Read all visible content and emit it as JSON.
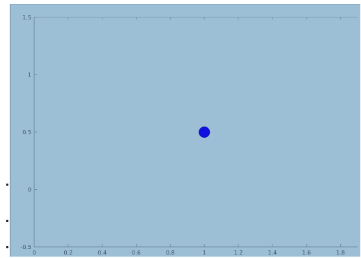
{
  "chart_data": {
    "type": "scatter",
    "title": "",
    "xlabel": "",
    "ylabel": "",
    "xlim": [
      0,
      1.9
    ],
    "ylim": [
      -0.5,
      1.5
    ],
    "x_ticks": [
      0,
      0.2,
      0.4,
      0.6,
      0.8,
      1,
      1.2,
      1.4,
      1.6,
      1.8
    ],
    "x_tick_labels": [
      "0",
      "0.2",
      "0.4",
      "0.6",
      "0.8",
      "1",
      "1.2",
      "1.4",
      "1.6",
      "1.8"
    ],
    "y_ticks": [
      -0.5,
      0,
      0.5,
      1,
      1.5
    ],
    "y_tick_labels": [
      "-0.5",
      "0",
      "0.5",
      "1",
      "1.5"
    ],
    "grid": false,
    "series": [
      {
        "x": [
          1.0
        ],
        "y": [
          0.5
        ],
        "color": "#1010e0"
      }
    ],
    "colors": {
      "background": "#9dbfd6",
      "axis": "#6f8ea3",
      "marker": "#1010e0"
    }
  }
}
